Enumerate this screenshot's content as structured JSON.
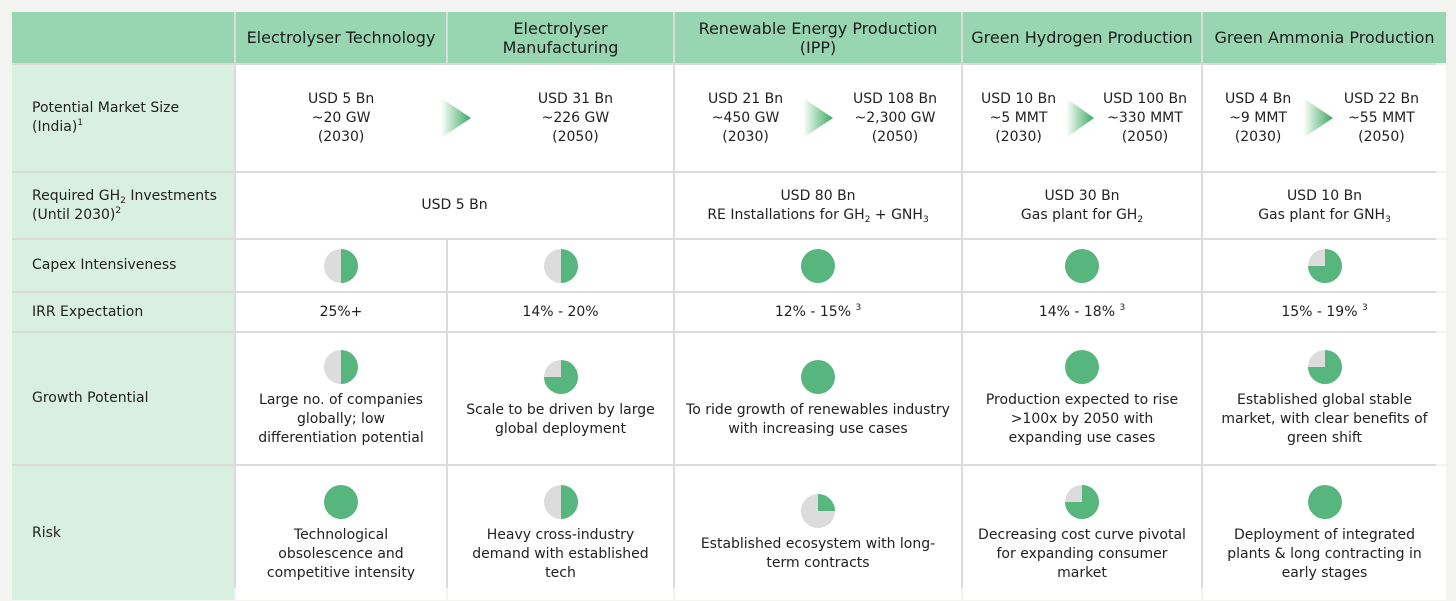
{
  "columns": [
    "Electrolyser Technology",
    "Electrolyser Manufacturing",
    "Renewable Energy Production (IPP)",
    "Green Hydrogen Production",
    "Green Ammonia Production"
  ],
  "rows": {
    "market": {
      "label": "Potential Market Size (India)",
      "sup": "1",
      "pairs": [
        {
          "left": [
            "USD 5 Bn",
            "~20 GW",
            "(2030)"
          ],
          "right": [
            "USD 31 Bn",
            "~226 GW",
            "(2050)"
          ]
        },
        {
          "left": [
            "USD 21 Bn",
            "~450 GW",
            "(2030)"
          ],
          "right": [
            "USD 108 Bn",
            "~2,300 GW",
            "(2050)"
          ]
        },
        {
          "left": [
            "USD 10 Bn",
            "~5 MMT",
            "(2030)"
          ],
          "right": [
            "USD 100 Bn",
            "~330 MMT",
            "(2050)"
          ]
        },
        {
          "left": [
            "USD 4 Bn",
            "~9 MMT",
            "(2030)"
          ],
          "right": [
            "USD 22 Bn",
            "~55 MMT",
            "(2050)"
          ]
        }
      ]
    },
    "invest": {
      "label_a": "Required GH",
      "label_sub": "2",
      "label_b": " Investments",
      "label_c": "(Until 2030)",
      "sup": "2",
      "cells": [
        {
          "line1": "USD 5 Bn"
        },
        {
          "line1": "USD 80 Bn",
          "line2a": "RE Installations for GH",
          "sub1": "2",
          "line2b": " + GNH",
          "sub2": "3"
        },
        {
          "line1": "USD 30 Bn",
          "line2a": "Gas plant for GH",
          "sub1": "2"
        },
        {
          "line1": "USD 10 Bn",
          "line2a": "Gas plant for GNH",
          "sub1": "3"
        }
      ]
    },
    "capex": {
      "label": "Capex Intensiveness",
      "levels": [
        0.5,
        0.5,
        1,
        1,
        0.75
      ]
    },
    "irr": {
      "label": "IRR Expectation",
      "values": [
        {
          "text": "25%+",
          "sup": ""
        },
        {
          "text": "14% - 20%",
          "sup": ""
        },
        {
          "text": "12% - 15% ",
          "sup": "3"
        },
        {
          "text": "14% - 18% ",
          "sup": "3"
        },
        {
          "text": "15% - 19% ",
          "sup": "3"
        }
      ]
    },
    "growth": {
      "label": "Growth Potential",
      "levels": [
        0.5,
        0.75,
        1,
        1,
        0.75
      ],
      "texts": [
        "Large no. of companies globally; low differentiation potential",
        "Scale to be driven by large global deployment",
        "To ride growth of renewables industry with increasing use cases",
        "Production expected to rise >100x by 2050 with expanding use cases",
        "Established global stable market, with clear benefits of green shift"
      ]
    },
    "risk": {
      "label": "Risk",
      "levels": [
        1,
        0.5,
        0.25,
        0.75,
        1
      ],
      "texts": [
        "Technological obsolescence and competitive intensity",
        "Heavy cross-industry demand with established tech",
        "Established ecosystem with long-term contracts",
        "Decreasing cost curve pivotal for expanding consumer market",
        "Deployment of integrated plants & long contracting in early stages"
      ]
    }
  },
  "colors": {
    "header": "#98d5b1",
    "label_bg": "#d8efe2",
    "pie_fill": "#56b67d",
    "pie_empty": "#dcdcdc"
  }
}
